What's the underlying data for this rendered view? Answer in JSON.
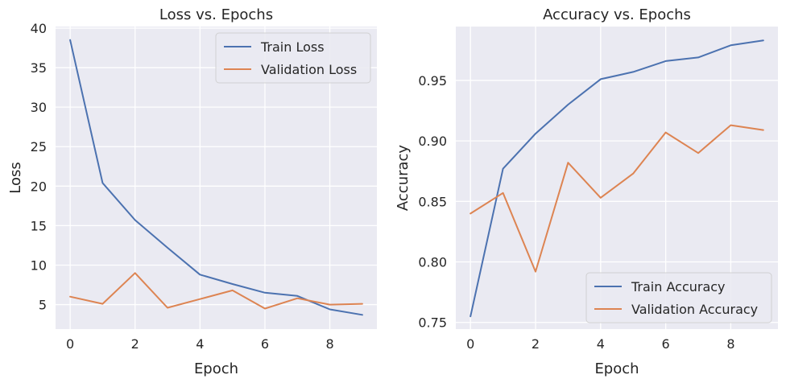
{
  "chart_data": [
    {
      "type": "line",
      "title": "Loss vs. Epochs",
      "xlabel": "Epoch",
      "ylabel": "Loss",
      "xlim": [
        -0.45,
        9.45
      ],
      "ylim": [
        1.9,
        40.2
      ],
      "xticks": [
        0,
        2,
        4,
        6,
        8
      ],
      "yticks": [
        5,
        10,
        15,
        20,
        25,
        30,
        35,
        40
      ],
      "grid": true,
      "legend_position": "top-right",
      "x": [
        0,
        1,
        2,
        3,
        4,
        5,
        6,
        7,
        8,
        9
      ],
      "series": [
        {
          "name": "Train Loss",
          "color": "#4c72b0",
          "values": [
            38.5,
            20.4,
            15.7,
            12.2,
            8.8,
            7.6,
            6.5,
            6.1,
            4.4,
            3.7
          ]
        },
        {
          "name": "Validation Loss",
          "color": "#dd8452",
          "values": [
            6.0,
            5.1,
            9.0,
            4.6,
            5.7,
            6.8,
            4.5,
            5.8,
            5.0,
            5.1
          ]
        }
      ]
    },
    {
      "type": "line",
      "title": "Accuracy vs. Epochs",
      "xlabel": "Epoch",
      "ylabel": "Accuracy",
      "xlim": [
        -0.45,
        9.45
      ],
      "ylim": [
        0.7445,
        0.9945
      ],
      "xticks": [
        0,
        2,
        4,
        6,
        8
      ],
      "yticks": [
        0.75,
        0.8,
        0.85,
        0.9,
        0.95
      ],
      "ytick_decimals": 2,
      "grid": true,
      "legend_position": "bottom-right",
      "x": [
        0,
        1,
        2,
        3,
        4,
        5,
        6,
        7,
        8,
        9
      ],
      "series": [
        {
          "name": "Train Accuracy",
          "color": "#4c72b0",
          "values": [
            0.755,
            0.877,
            0.906,
            0.93,
            0.951,
            0.957,
            0.966,
            0.969,
            0.979,
            0.983
          ]
        },
        {
          "name": "Validation Accuracy",
          "color": "#dd8452",
          "values": [
            0.84,
            0.857,
            0.792,
            0.882,
            0.853,
            0.873,
            0.907,
            0.89,
            0.913,
            0.909
          ]
        }
      ]
    }
  ]
}
